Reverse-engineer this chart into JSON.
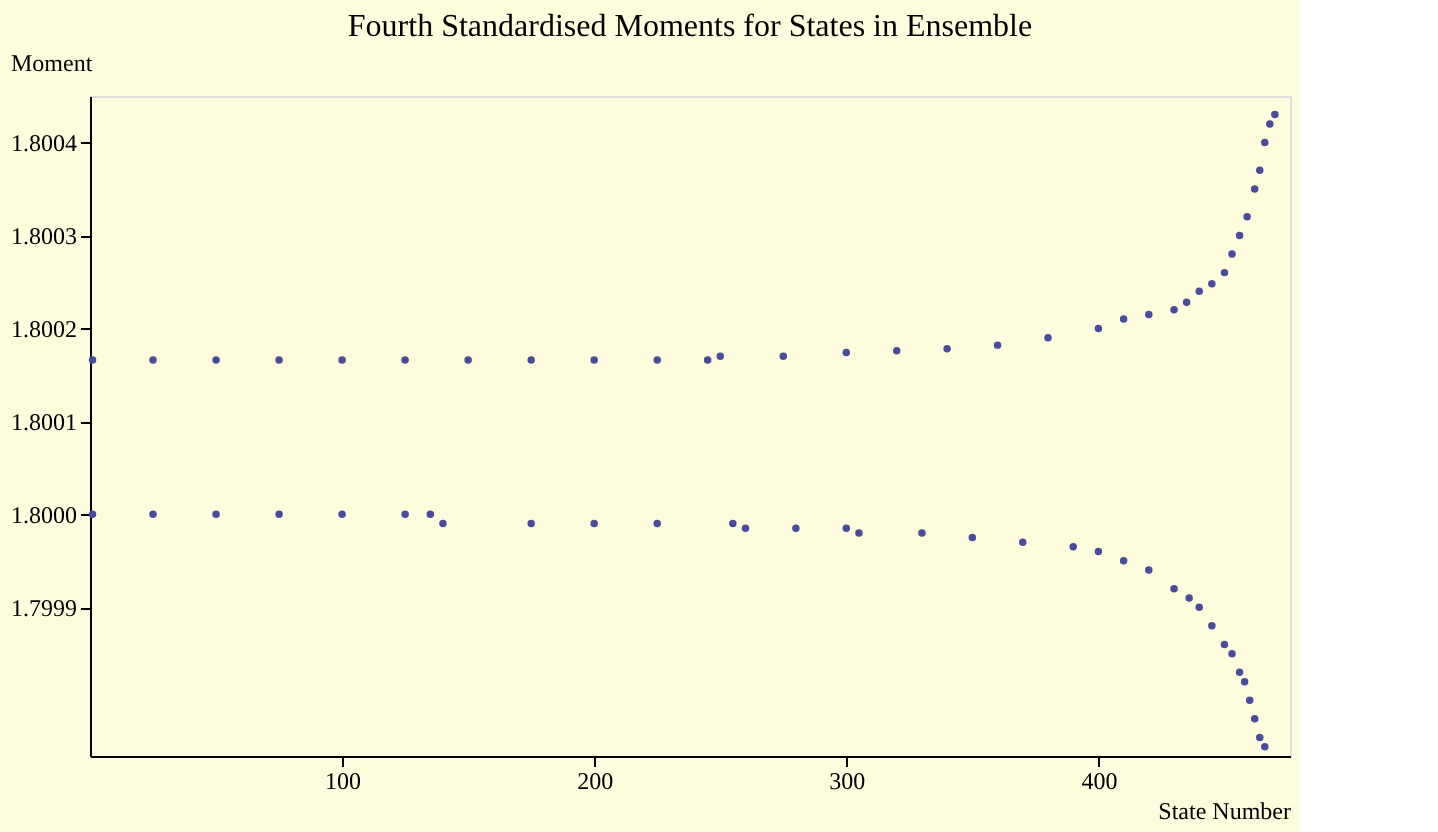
{
  "chart_data": {
    "type": "scatter",
    "title": "Fourth Standardised Moments for States in Ensemble",
    "xlabel": "State Number",
    "ylabel": "Moment",
    "series": [
      {
        "color": "#4b4b9e",
        "x": [
          1,
          25,
          50,
          75,
          100,
          125,
          150,
          175,
          200,
          225,
          245,
          250,
          275,
          300,
          320,
          340,
          360,
          380,
          400,
          410,
          420,
          430,
          435,
          440,
          445,
          450,
          453,
          456,
          459,
          462,
          464,
          466,
          468,
          470
        ],
        "values": [
          1.800166,
          1.800166,
          1.800166,
          1.800166,
          1.800166,
          1.800166,
          1.800166,
          1.800166,
          1.800166,
          1.800166,
          1.800166,
          1.80017,
          1.80017,
          1.800174,
          1.800176,
          1.800178,
          1.800182,
          1.80019,
          1.8002,
          1.80021,
          1.800215,
          1.80022,
          1.800228,
          1.80024,
          1.800248,
          1.80026,
          1.80028,
          1.8003,
          1.80032,
          1.80035,
          1.80037,
          1.8004,
          1.80042,
          1.80043
        ]
      },
      {
        "color": "#4b4b9e",
        "x": [
          1,
          25,
          50,
          75,
          100,
          125,
          135,
          140,
          175,
          200,
          225,
          255,
          260,
          280,
          300,
          305,
          330,
          350,
          370,
          390,
          400,
          410,
          420,
          430,
          436,
          440,
          445,
          450,
          453,
          456,
          458,
          460,
          462,
          464,
          466
        ],
        "values": [
          1.8,
          1.8,
          1.8,
          1.8,
          1.8,
          1.8,
          1.8,
          1.79999,
          1.79999,
          1.79999,
          1.79999,
          1.79999,
          1.799985,
          1.799985,
          1.799985,
          1.79998,
          1.79998,
          1.799975,
          1.79997,
          1.799965,
          1.79996,
          1.79995,
          1.79994,
          1.79992,
          1.79991,
          1.7999,
          1.79988,
          1.79986,
          1.79985,
          1.79983,
          1.79982,
          1.7998,
          1.79978,
          1.79976,
          1.79975
        ]
      }
    ],
    "xlim": [
      0,
      476
    ],
    "xticks": [
      100,
      200,
      300,
      400
    ],
    "ylim": [
      1.79974,
      1.80045
    ],
    "yticks": [
      {
        "value": 1.7999,
        "label": "1.7999"
      },
      {
        "value": 1.8,
        "label": "1.8000"
      },
      {
        "value": 1.8001,
        "label": "1.8001"
      },
      {
        "value": 1.8002,
        "label": "1.8002"
      },
      {
        "value": 1.8003,
        "label": "1.8003"
      },
      {
        "value": 1.8004,
        "label": "1.8004"
      }
    ],
    "grid": false,
    "legend": false,
    "marker": "circle"
  }
}
